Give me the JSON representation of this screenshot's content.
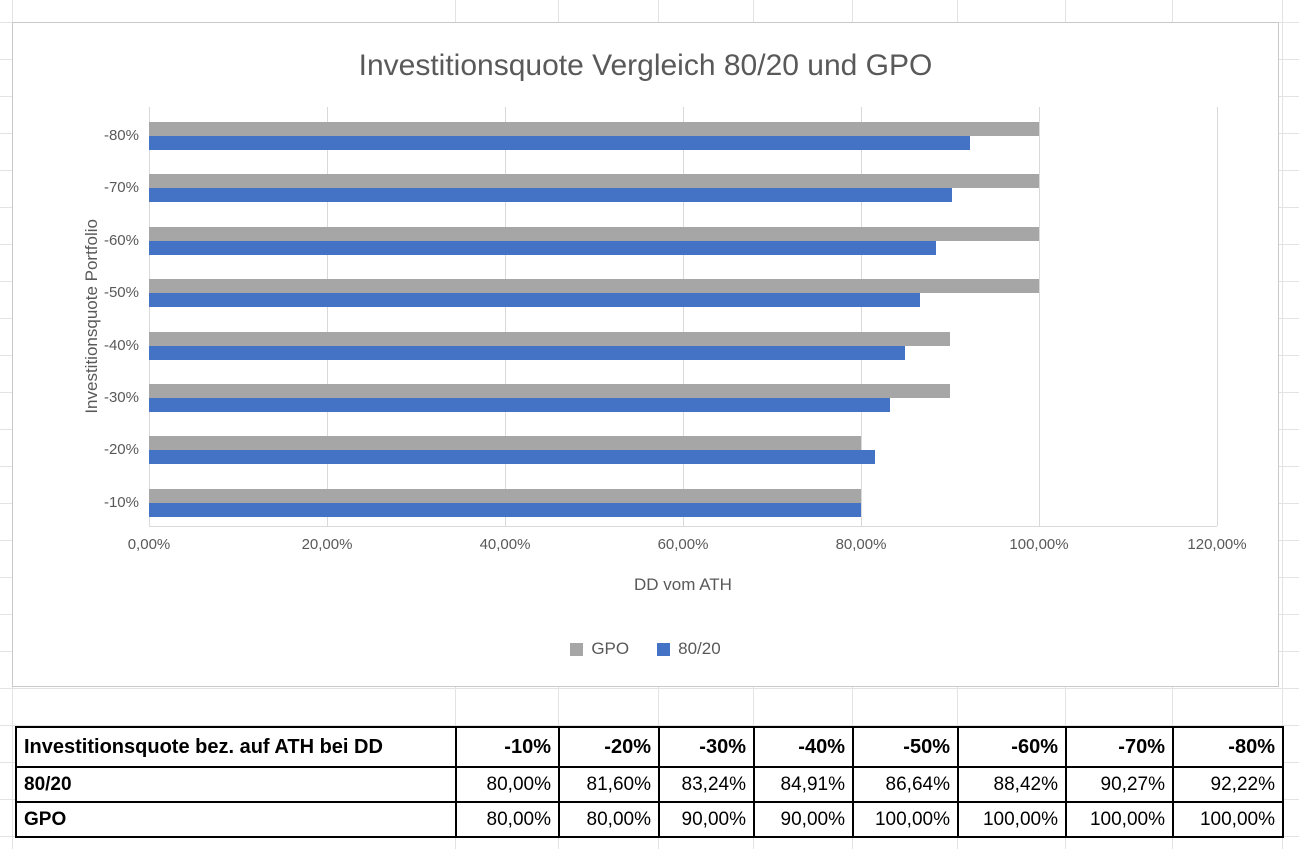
{
  "chart": {
    "title": "Investitionsquote Vergleich 80/20 und GPO",
    "x_axis_title": "DD vom ATH",
    "y_axis_title": "Investitionsquote Portfolio",
    "x_ticks": [
      "0,00%",
      "20,00%",
      "40,00%",
      "60,00%",
      "80,00%",
      "100,00%",
      "120,00%"
    ],
    "y_categories_top_to_bottom": [
      "-80%",
      "-70%",
      "-60%",
      "-50%",
      "-40%",
      "-30%",
      "-20%",
      "-10%"
    ],
    "legend": [
      {
        "name": "GPO",
        "color": "#a6a6a6"
      },
      {
        "name": "80/20",
        "color": "#4472c4"
      }
    ]
  },
  "chart_data": {
    "type": "bar",
    "orientation": "horizontal",
    "title": "Investitionsquote Vergleich 80/20 und GPO",
    "categories": [
      "-10%",
      "-20%",
      "-30%",
      "-40%",
      "-50%",
      "-60%",
      "-70%",
      "-80%"
    ],
    "series": [
      {
        "name": "80/20",
        "color": "#4472c4",
        "values": [
          80.0,
          81.6,
          83.24,
          84.91,
          86.64,
          88.42,
          90.27,
          92.22
        ]
      },
      {
        "name": "GPO",
        "color": "#a6a6a6",
        "values": [
          80.0,
          80.0,
          90.0,
          90.0,
          100.0,
          100.0,
          100.0,
          100.0
        ]
      }
    ],
    "xlabel": "DD vom ATH",
    "ylabel": "Investitionsquote Portfolio",
    "xlim": [
      0,
      120
    ],
    "x_tick_step": 20,
    "grid": true,
    "legend_position": "bottom",
    "axis_category_order_top_to_bottom": [
      "-80%",
      "-70%",
      "-60%",
      "-50%",
      "-40%",
      "-30%",
      "-20%",
      "-10%"
    ],
    "bar_order_within_group_top_to_bottom": [
      "GPO",
      "80/20"
    ]
  },
  "table": {
    "header_label": "Investitionsquote bez. auf ATH bei DD",
    "header_values": [
      "-10%",
      "-20%",
      "-30%",
      "-40%",
      "-50%",
      "-60%",
      "-70%",
      "-80%"
    ],
    "rows": [
      {
        "label": "80/20",
        "values": [
          "80,00%",
          "81,60%",
          "83,24%",
          "84,91%",
          "86,64%",
          "88,42%",
          "90,27%",
          "92,22%"
        ]
      },
      {
        "label": "GPO",
        "values": [
          "80,00%",
          "80,00%",
          "90,00%",
          "90,00%",
          "100,00%",
          "100,00%",
          "100,00%",
          "100,00%"
        ]
      }
    ]
  },
  "colors": {
    "bar_blue": "#4472c4",
    "bar_gray": "#a6a6a6",
    "chart_text": "#595959",
    "plot_gridline": "#d9d9d9",
    "worksheet_gridline": "#e3e3e3",
    "table_border": "#000000"
  }
}
